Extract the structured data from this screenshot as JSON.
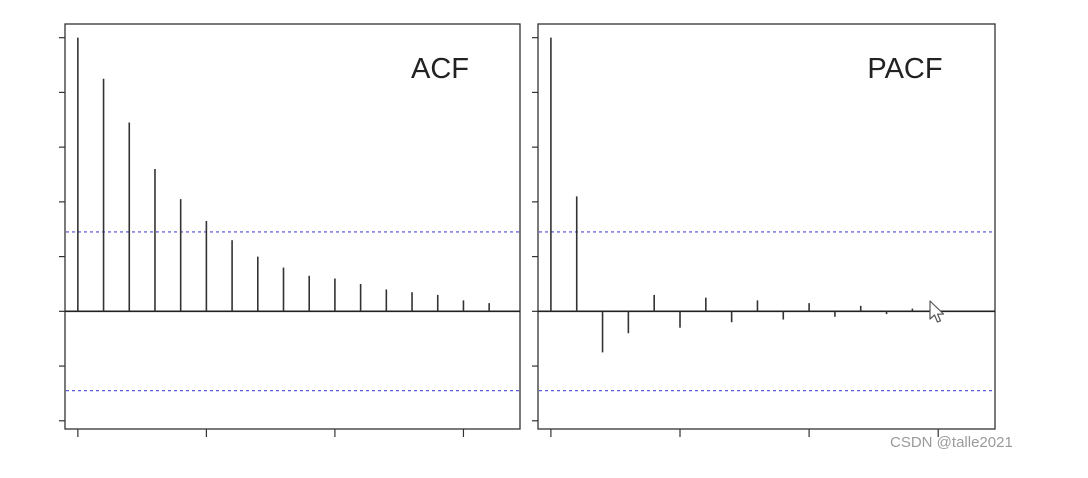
{
  "chart_data": [
    {
      "type": "bar",
      "title": "ACF",
      "lags": [
        1,
        2,
        3,
        4,
        5,
        6,
        7,
        8,
        9,
        10,
        11,
        12,
        13,
        14,
        15,
        16,
        17
      ],
      "values": [
        1.0,
        0.85,
        0.69,
        0.52,
        0.41,
        0.33,
        0.26,
        0.2,
        0.16,
        0.13,
        0.12,
        0.1,
        0.08,
        0.07,
        0.06,
        0.04,
        0.03
      ],
      "confidence_band": [
        0.29,
        -0.29
      ],
      "ylim": [
        -0.43,
        1.05
      ],
      "xlim": [
        0.5,
        18.2
      ],
      "x_ticks": [
        1,
        6,
        11,
        16
      ],
      "y_ticks": [
        -0.4,
        -0.2,
        0.0,
        0.2,
        0.4,
        0.6,
        0.8,
        1.0
      ],
      "zero_line": true,
      "band_color": "#4b4bd6"
    },
    {
      "type": "bar",
      "title": "PACF",
      "lags": [
        1,
        2,
        3,
        4,
        5,
        6,
        7,
        8,
        9,
        10,
        11,
        12,
        13,
        14,
        15,
        16,
        17
      ],
      "values": [
        1.0,
        0.42,
        -0.15,
        -0.08,
        0.06,
        -0.06,
        0.05,
        -0.04,
        0.04,
        -0.03,
        0.03,
        -0.02,
        0.02,
        -0.01,
        0.01,
        0.01,
        0.0
      ],
      "confidence_band": [
        0.29,
        -0.29
      ],
      "ylim": [
        -0.43,
        1.05
      ],
      "xlim": [
        0.5,
        18.2
      ],
      "x_ticks": [
        1,
        6,
        11,
        16
      ],
      "y_ticks": [
        -0.4,
        -0.2,
        0.0,
        0.2,
        0.4,
        0.6,
        0.8,
        1.0
      ],
      "zero_line": true,
      "band_color": "#4b4bd6"
    }
  ],
  "watermark": "CSDN @talle2021"
}
